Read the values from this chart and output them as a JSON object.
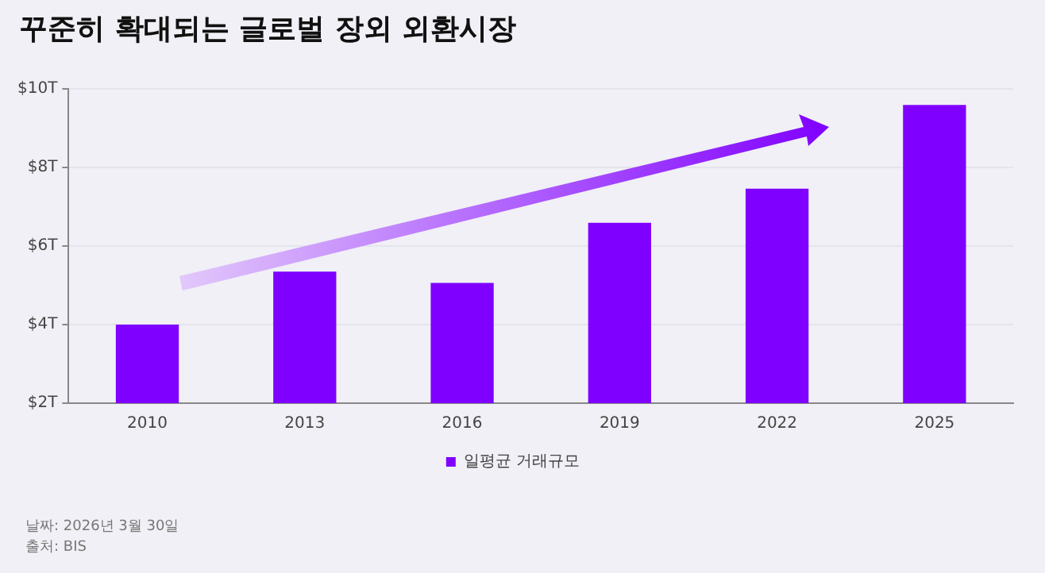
{
  "chart_data": {
    "type": "bar",
    "title": "꾸준히 확대되는 글로벌 장외 외환시장",
    "categories": [
      "2010",
      "2013",
      "2016",
      "2019",
      "2022",
      "2025"
    ],
    "series": [
      {
        "name": "일평균 거래규모",
        "color": "#7f00ff",
        "values": [
          4.0,
          5.35,
          5.06,
          6.59,
          7.46,
          9.59
        ]
      }
    ],
    "ylim": [
      2,
      10
    ],
    "yticks": [
      {
        "value": 2,
        "label": "$2T"
      },
      {
        "value": 4,
        "label": "$4T"
      },
      {
        "value": 6,
        "label": "$6T"
      },
      {
        "value": 8,
        "label": "$8T"
      },
      {
        "value": 10,
        "label": "$10T"
      }
    ],
    "grid": "y",
    "legend": "bottom",
    "annotations": [
      "날짜: 2026년 3월 30일",
      "출처: BIS"
    ]
  }
}
